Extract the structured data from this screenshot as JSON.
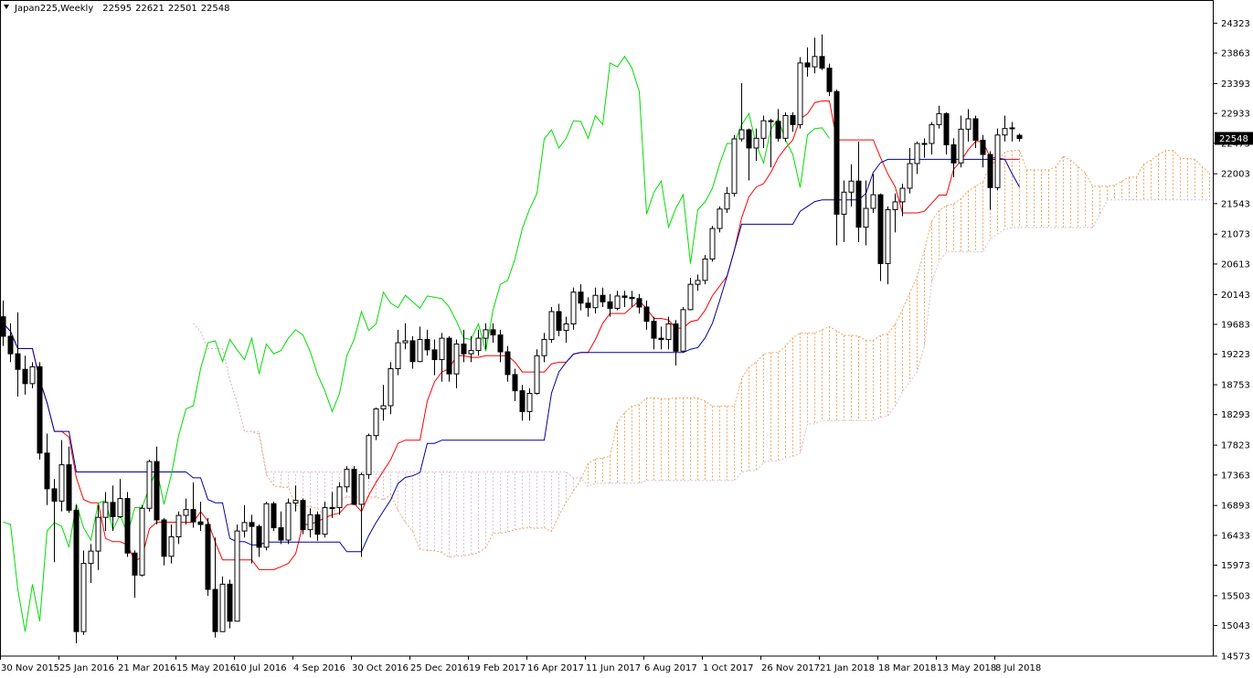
{
  "chart_data": {
    "type": "candlestick",
    "title": "Japan225,Weekly",
    "ylim": [
      14573,
      24680
    ],
    "yticks": [
      24323,
      23863,
      23393,
      22933,
      22473,
      22003,
      21543,
      21073,
      20613,
      20143,
      19683,
      19223,
      18753,
      18293,
      17823,
      17363,
      16893,
      16433,
      15973,
      15503,
      15043,
      14573
    ],
    "xticks": [
      {
        "value": 0,
        "label": "30 Nov 2015"
      },
      {
        "value": 8,
        "label": "25 Jan 2016"
      },
      {
        "value": 16,
        "label": "21 Mar 2016"
      },
      {
        "value": 24,
        "label": "15 May 2016"
      },
      {
        "value": 32,
        "label": "10 Jul 2016"
      },
      {
        "value": 40,
        "label": "4 Sep 2016"
      },
      {
        "value": 48,
        "label": "30 Oct 2016"
      },
      {
        "value": 56,
        "label": "25 Dec 2016"
      },
      {
        "value": 64,
        "label": "19 Feb 2017"
      },
      {
        "value": 72,
        "label": "16 Apr 2017"
      },
      {
        "value": 80,
        "label": "11 Jun 2017"
      },
      {
        "value": 88,
        "label": "6 Aug 2017"
      },
      {
        "value": 96,
        "label": "1 Oct 2017"
      },
      {
        "value": 104,
        "label": "26 Nov 2017"
      },
      {
        "value": 112,
        "label": "21 Jan 2018"
      },
      {
        "value": 120,
        "label": "18 Mar 2018"
      },
      {
        "value": 128,
        "label": "13 May 2018"
      },
      {
        "value": 136,
        "label": "8 Jul 2018"
      }
    ],
    "colors": {
      "tenkan": "#ff0000",
      "kijun": "#0000a0",
      "chikou": "#00dd00",
      "span_a": "#f4a460",
      "span_b": "#d8bfd8"
    },
    "candles": [
      [
        19800,
        20050,
        19350,
        19500
      ],
      [
        19500,
        19700,
        19100,
        19230
      ],
      [
        19230,
        19870,
        18570,
        18990
      ],
      [
        18990,
        19200,
        18600,
        18770
      ],
      [
        18770,
        19100,
        18700,
        19030
      ],
      [
        19030,
        19100,
        17600,
        17700
      ],
      [
        17700,
        18000,
        16900,
        17150
      ],
      [
        17150,
        17300,
        16020,
        16960
      ],
      [
        16960,
        17900,
        16800,
        17520
      ],
      [
        17520,
        17800,
        16780,
        16820
      ],
      [
        16820,
        16900,
        14770,
        14950
      ],
      [
        14950,
        16200,
        14900,
        16000
      ],
      [
        16000,
        16300,
        15700,
        16190
      ],
      [
        16190,
        16900,
        15900,
        16710
      ],
      [
        16710,
        17100,
        16500,
        16940
      ],
      [
        16940,
        17200,
        16500,
        16720
      ],
      [
        16720,
        17300,
        16700,
        17000
      ],
      [
        17000,
        17100,
        16100,
        16160
      ],
      [
        16160,
        16200,
        15470,
        15820
      ],
      [
        15820,
        16900,
        15800,
        16850
      ],
      [
        16850,
        17600,
        16800,
        17570
      ],
      [
        17570,
        17800,
        16600,
        16670
      ],
      [
        16670,
        16700,
        15970,
        16110
      ],
      [
        16110,
        16600,
        16000,
        16410
      ],
      [
        16410,
        16800,
        16300,
        16740
      ],
      [
        16740,
        17000,
        16600,
        16830
      ],
      [
        16830,
        17250,
        16550,
        16640
      ],
      [
        16640,
        16950,
        16500,
        16600
      ],
      [
        16600,
        16700,
        15500,
        15600
      ],
      [
        15600,
        16400,
        14860,
        14950
      ],
      [
        14950,
        15800,
        14950,
        15680
      ],
      [
        15680,
        15750,
        15000,
        15110
      ],
      [
        15110,
        16600,
        15100,
        16500
      ],
      [
        16500,
        16900,
        16400,
        16630
      ],
      [
        16630,
        16750,
        16000,
        16570
      ],
      [
        16570,
        16600,
        16100,
        16250
      ],
      [
        16250,
        16950,
        16200,
        16920
      ],
      [
        16920,
        16950,
        16500,
        16550
      ],
      [
        16550,
        16800,
        16300,
        16360
      ],
      [
        16360,
        17000,
        16300,
        16930
      ],
      [
        16930,
        17200,
        16800,
        16970
      ],
      [
        16970,
        17000,
        16450,
        16520
      ],
      [
        16520,
        16850,
        16400,
        16750
      ],
      [
        16750,
        16800,
        16350,
        16450
      ],
      [
        16450,
        16950,
        16400,
        16860
      ],
      [
        16860,
        17100,
        16700,
        16860
      ],
      [
        16860,
        17250,
        16750,
        17180
      ],
      [
        17180,
        17500,
        17100,
        17450
      ],
      [
        17450,
        17500,
        16900,
        16910
      ],
      [
        16910,
        17400,
        16100,
        17370
      ],
      [
        17370,
        18000,
        17300,
        17970
      ],
      [
        17970,
        18400,
        17900,
        18380
      ],
      [
        18380,
        18750,
        18200,
        18430
      ],
      [
        18430,
        19100,
        18300,
        19000
      ],
      [
        19000,
        19600,
        18900,
        19400
      ],
      [
        19400,
        19700,
        19300,
        19430
      ],
      [
        19430,
        19500,
        19000,
        19110
      ],
      [
        19110,
        19650,
        19100,
        19450
      ],
      [
        19450,
        19600,
        19200,
        19290
      ],
      [
        19290,
        19450,
        18900,
        19140
      ],
      [
        19140,
        19550,
        18800,
        19470
      ],
      [
        19470,
        19500,
        18800,
        18920
      ],
      [
        18920,
        19450,
        18700,
        19380
      ],
      [
        19380,
        19600,
        19100,
        19230
      ],
      [
        19230,
        19500,
        19100,
        19280
      ],
      [
        19280,
        19600,
        19200,
        19470
      ],
      [
        19470,
        19700,
        19300,
        19600
      ],
      [
        19600,
        19700,
        19400,
        19520
      ],
      [
        19520,
        19600,
        19100,
        19260
      ],
      [
        19260,
        19350,
        18800,
        18910
      ],
      [
        18910,
        19000,
        18500,
        18660
      ],
      [
        18660,
        18750,
        18200,
        18340
      ],
      [
        18340,
        18700,
        18200,
        18620
      ],
      [
        18620,
        19300,
        18600,
        19200
      ],
      [
        19200,
        19550,
        19100,
        19450
      ],
      [
        19450,
        19950,
        19400,
        19880
      ],
      [
        19880,
        20000,
        19500,
        19590
      ],
      [
        19590,
        19800,
        19400,
        19690
      ],
      [
        19690,
        20250,
        19600,
        20180
      ],
      [
        20180,
        20300,
        19900,
        20010
      ],
      [
        20010,
        20100,
        19800,
        19940
      ],
      [
        19940,
        20250,
        19850,
        20130
      ],
      [
        20130,
        20250,
        19950,
        20030
      ],
      [
        20030,
        20150,
        19800,
        19930
      ],
      [
        19930,
        20200,
        19900,
        20120
      ],
      [
        20120,
        20200,
        19950,
        20100
      ],
      [
        20100,
        20200,
        19950,
        20080
      ],
      [
        20080,
        20150,
        19850,
        19950
      ],
      [
        19950,
        20050,
        19600,
        19730
      ],
      [
        19730,
        19800,
        19300,
        19470
      ],
      [
        19470,
        19650,
        19300,
        19450
      ],
      [
        19450,
        19800,
        19300,
        19690
      ],
      [
        19690,
        19750,
        19050,
        19270
      ],
      [
        19270,
        19950,
        19250,
        19910
      ],
      [
        19910,
        20400,
        19900,
        20300
      ],
      [
        20300,
        20450,
        20200,
        20360
      ],
      [
        20360,
        20750,
        20300,
        20690
      ],
      [
        20690,
        21200,
        20650,
        21160
      ],
      [
        21160,
        21500,
        21100,
        21460
      ],
      [
        21460,
        21800,
        21400,
        21700
      ],
      [
        21700,
        22600,
        21650,
        22540
      ],
      [
        22540,
        23400,
        22500,
        22680
      ],
      [
        22680,
        22700,
        21900,
        22400
      ],
      [
        22400,
        22700,
        22200,
        22550
      ],
      [
        22550,
        22900,
        22400,
        22820
      ],
      [
        22820,
        22850,
        22100,
        22810
      ],
      [
        22810,
        23000,
        22500,
        22550
      ],
      [
        22550,
        22950,
        22500,
        22900
      ],
      [
        22900,
        22950,
        22650,
        22760
      ],
      [
        22760,
        23800,
        22700,
        23710
      ],
      [
        23710,
        23950,
        23500,
        23650
      ],
      [
        23650,
        24100,
        23550,
        23810
      ],
      [
        23810,
        24150,
        23600,
        23630
      ],
      [
        23630,
        23700,
        23200,
        23270
      ],
      [
        23270,
        23300,
        20900,
        21380
      ],
      [
        21380,
        21900,
        20950,
        21720
      ],
      [
        21720,
        22150,
        21500,
        21890
      ],
      [
        21890,
        22500,
        20950,
        21180
      ],
      [
        21180,
        21900,
        20900,
        21470
      ],
      [
        21470,
        22000,
        21400,
        21680
      ],
      [
        21680,
        21700,
        20350,
        20620
      ],
      [
        20620,
        21500,
        20300,
        21450
      ],
      [
        21450,
        21700,
        21100,
        21570
      ],
      [
        21570,
        21850,
        21350,
        21780
      ],
      [
        21780,
        22400,
        21700,
        22160
      ],
      [
        22160,
        22500,
        22000,
        22470
      ],
      [
        22470,
        22550,
        22250,
        22470
      ],
      [
        22470,
        22800,
        22300,
        22760
      ],
      [
        22760,
        23050,
        22700,
        22930
      ],
      [
        22930,
        22950,
        22300,
        22450
      ],
      [
        22450,
        22550,
        21950,
        22170
      ],
      [
        22170,
        22900,
        22100,
        22690
      ],
      [
        22690,
        23000,
        22500,
        22850
      ],
      [
        22850,
        22900,
        22400,
        22520
      ],
      [
        22520,
        22600,
        22100,
        22300
      ],
      [
        22300,
        22350,
        21450,
        21790
      ],
      [
        21790,
        22700,
        21750,
        22600
      ],
      [
        22600,
        22900,
        22500,
        22700
      ],
      [
        22700,
        22800,
        22500,
        22710
      ],
      [
        22595,
        22621,
        22501,
        22548
      ]
    ]
  }
}
